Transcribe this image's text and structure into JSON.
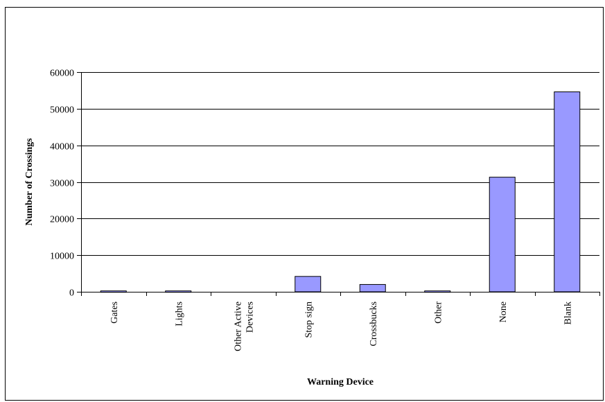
{
  "chart_data": {
    "type": "bar",
    "title": "",
    "xlabel": "Warning Device",
    "ylabel": "Number of Crossings",
    "categories": [
      "Gates",
      "Lights",
      "Other Active Devices",
      "Stop sign",
      "Crossbucks",
      "Other",
      "None",
      "Blank"
    ],
    "category_lines": [
      [
        "Gates"
      ],
      [
        "Lights"
      ],
      [
        "Other Active",
        "Devices"
      ],
      [
        "Stop sign"
      ],
      [
        "Crossbucks"
      ],
      [
        "Other"
      ],
      [
        "None"
      ],
      [
        "Blank"
      ]
    ],
    "values": [
      250,
      250,
      0,
      4200,
      2000,
      250,
      31300,
      54600
    ],
    "ylim": [
      0,
      60000
    ],
    "yticks": [
      0,
      10000,
      20000,
      30000,
      40000,
      50000,
      60000
    ],
    "ytick_labels": [
      "0",
      "10000",
      "20000",
      "30000",
      "40000",
      "50000",
      "60000"
    ],
    "grid": true,
    "legend": false,
    "bar_color": "#9999FF",
    "bar_edge_color": "#000000"
  }
}
